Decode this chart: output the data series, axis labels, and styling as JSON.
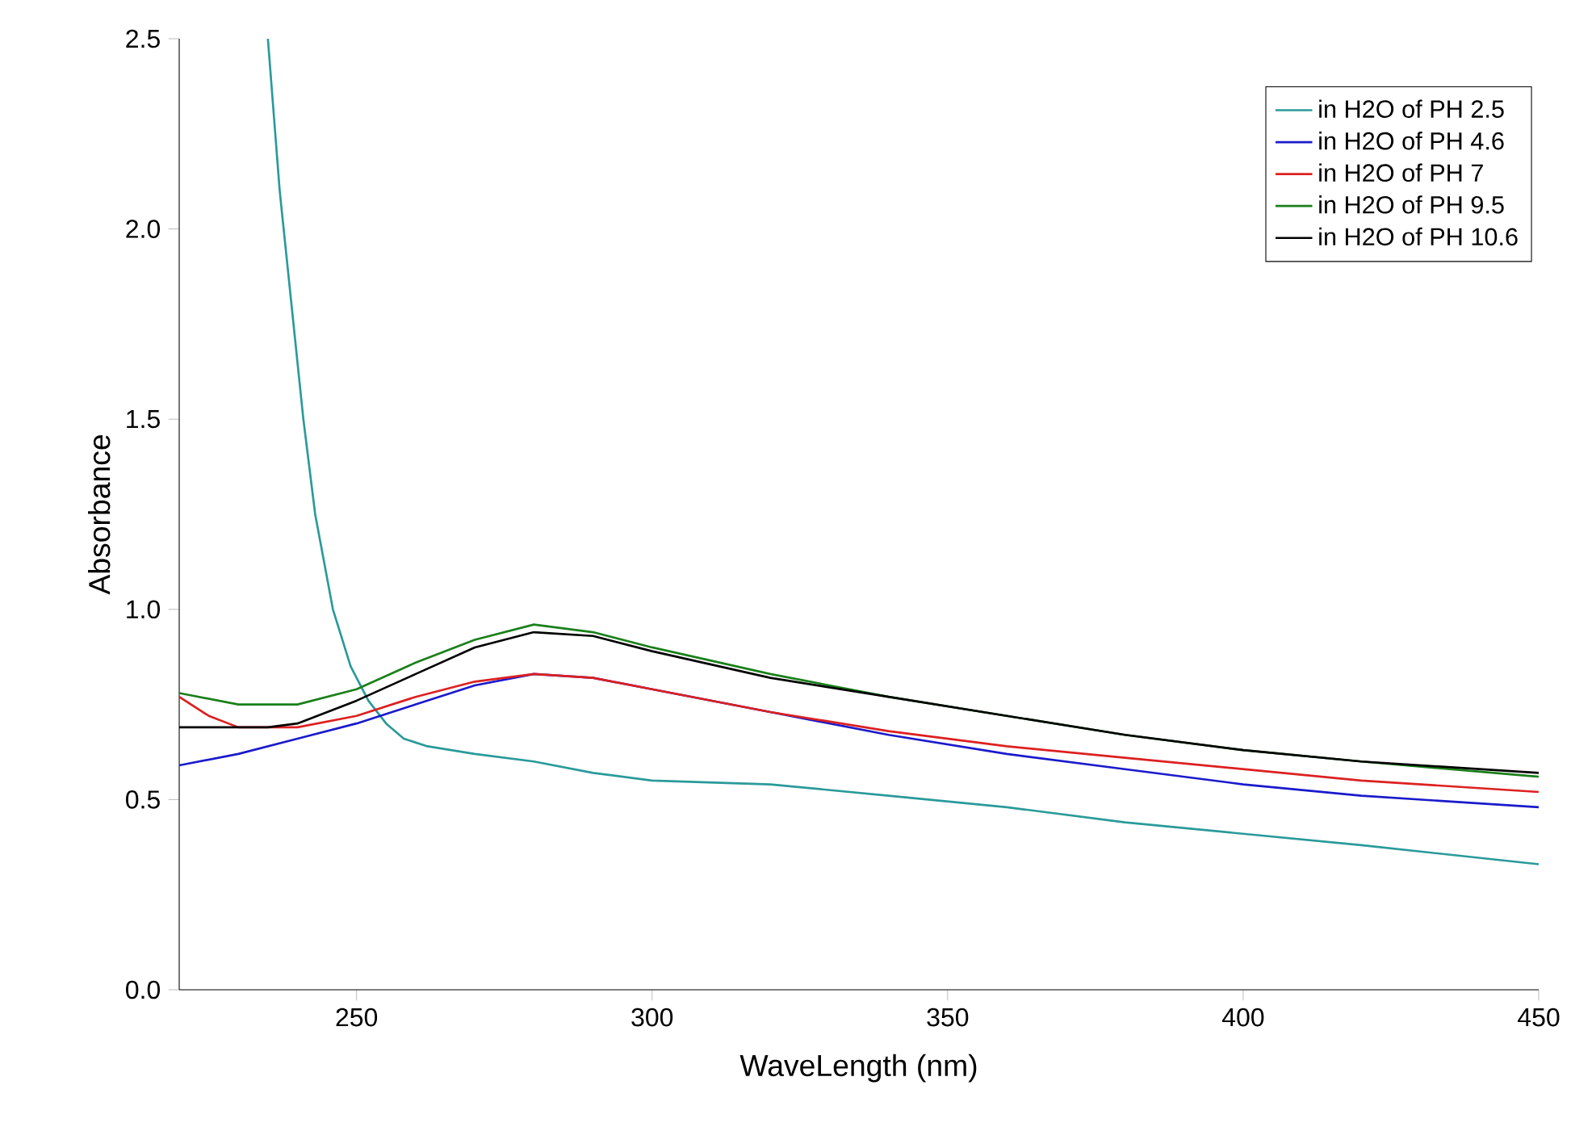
{
  "chart_data": {
    "type": "line",
    "xlabel": "WaveLength (nm)",
    "ylabel": "Absorbance",
    "xlim": [
      220,
      450
    ],
    "ylim": [
      0,
      2.5
    ],
    "xticks": [
      250,
      300,
      350,
      400,
      450
    ],
    "yticks": [
      {
        "value": 0,
        "label": "0.0"
      },
      0.5,
      {
        "value": 1,
        "label": "1.0"
      },
      1.5,
      {
        "value": 2,
        "label": "2.0"
      },
      2.5
    ],
    "grid": false,
    "legend": "top right",
    "marker": "none",
    "line_style": "solid",
    "series": [
      {
        "name": "in H2O of PH 2.5",
        "color": "#2a9a9a",
        "x": [
          235,
          237,
          239,
          241,
          243,
          246,
          249,
          252,
          255,
          258,
          262,
          270,
          280,
          290,
          300,
          320,
          340,
          360,
          380,
          400,
          420,
          450
        ],
        "values": [
          2.5,
          2.1,
          1.8,
          1.5,
          1.25,
          1.0,
          0.85,
          0.76,
          0.7,
          0.66,
          0.64,
          0.62,
          0.6,
          0.57,
          0.55,
          0.54,
          0.51,
          0.48,
          0.44,
          0.41,
          0.38,
          0.33
        ]
      },
      {
        "name": "in H2O of PH 4.6",
        "color": "#1a1acc",
        "x": [
          220,
          230,
          240,
          250,
          260,
          270,
          280,
          290,
          300,
          320,
          340,
          360,
          380,
          400,
          420,
          450
        ],
        "values": [
          0.59,
          0.62,
          0.66,
          0.7,
          0.75,
          0.8,
          0.83,
          0.82,
          0.79,
          0.73,
          0.67,
          0.62,
          0.58,
          0.54,
          0.51,
          0.48
        ]
      },
      {
        "name": "in H2O of PH 7",
        "color": "#dd2020",
        "x": [
          220,
          225,
          230,
          240,
          250,
          260,
          270,
          280,
          290,
          300,
          320,
          340,
          360,
          380,
          400,
          420,
          450
        ],
        "values": [
          0.77,
          0.72,
          0.69,
          0.69,
          0.72,
          0.77,
          0.81,
          0.83,
          0.82,
          0.79,
          0.73,
          0.68,
          0.64,
          0.61,
          0.58,
          0.55,
          0.52
        ]
      },
      {
        "name": "in H2O of PH 9.5",
        "color": "#1a801a",
        "x": [
          220,
          230,
          240,
          250,
          260,
          270,
          280,
          290,
          300,
          320,
          340,
          360,
          380,
          400,
          420,
          450
        ],
        "values": [
          0.78,
          0.75,
          0.75,
          0.79,
          0.86,
          0.92,
          0.96,
          0.94,
          0.9,
          0.83,
          0.77,
          0.72,
          0.67,
          0.63,
          0.6,
          0.56
        ]
      },
      {
        "name": "in H2O of PH 10.6",
        "color": "#000000",
        "x": [
          220,
          235,
          240,
          250,
          260,
          270,
          280,
          290,
          300,
          320,
          340,
          360,
          380,
          400,
          420,
          450
        ],
        "values": [
          0.69,
          0.69,
          0.7,
          0.76,
          0.83,
          0.9,
          0.94,
          0.93,
          0.89,
          0.82,
          0.77,
          0.72,
          0.67,
          0.63,
          0.6,
          0.57
        ]
      }
    ]
  }
}
